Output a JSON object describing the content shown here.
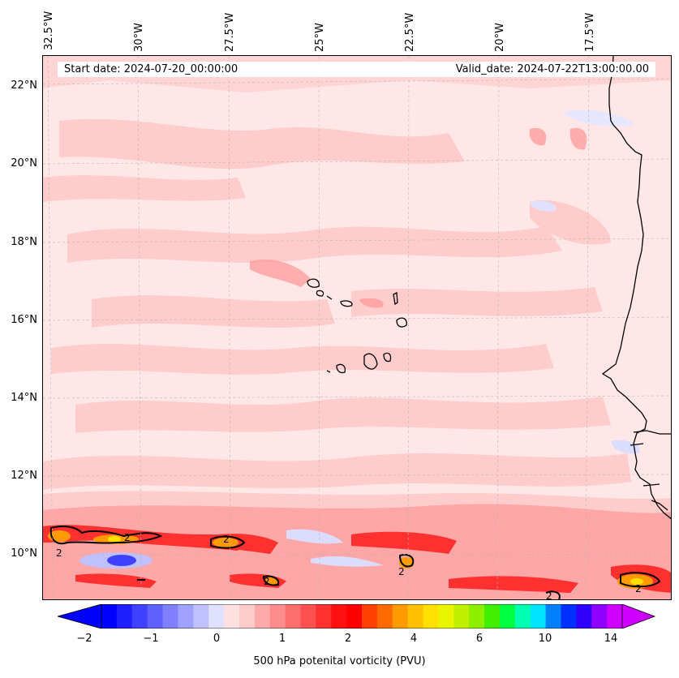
{
  "map": {
    "start_date": "Start date: 2024-07-20_00:00:00",
    "valid_date": "Valid_date: 2024-07-22T13:00:00.00",
    "longitude_labels": [
      "32.5°W",
      "30°W",
      "27.5°W",
      "25°W",
      "22.5°W",
      "20°W",
      "17.5°W"
    ],
    "latitude_labels": [
      "22°N",
      "20°N",
      "18°N",
      "16°N",
      "14°N",
      "12°N",
      "10°N"
    ],
    "contour_value_label": "2",
    "colors": {
      "background_pv": "#ffe7e7",
      "light_pink": "#ffcccc",
      "mid_pink": "#ff9999",
      "red": "#ff2020",
      "orange": "#ff9a00",
      "blue": "#4040ff",
      "light_blue": "#dcdcff"
    }
  },
  "colorbar": {
    "label": "500 hPa potenital vorticity (PVU)",
    "ticks": [
      "−2",
      "−1",
      "0",
      "1",
      "2",
      "4",
      "6",
      "10",
      "14"
    ],
    "colors": [
      "#0000ff",
      "#2020ff",
      "#4040ff",
      "#6060ff",
      "#8080ff",
      "#a0a0ff",
      "#c0c0ff",
      "#e0e0ff",
      "#ffe0e0",
      "#ffcccc",
      "#ffaaaa",
      "#ff8c8c",
      "#ff6e6e",
      "#ff5050",
      "#ff3030",
      "#ff1010",
      "#ff0000",
      "#ff4000",
      "#ff6a00",
      "#ff9a00",
      "#ffc000",
      "#ffe000",
      "#eaf500",
      "#c0f000",
      "#8cf000",
      "#40f000",
      "#00ff40",
      "#00ffb0",
      "#00e5ff",
      "#0080ff",
      "#0030ff",
      "#3000ff",
      "#9000ff",
      "#d000ff"
    ]
  }
}
